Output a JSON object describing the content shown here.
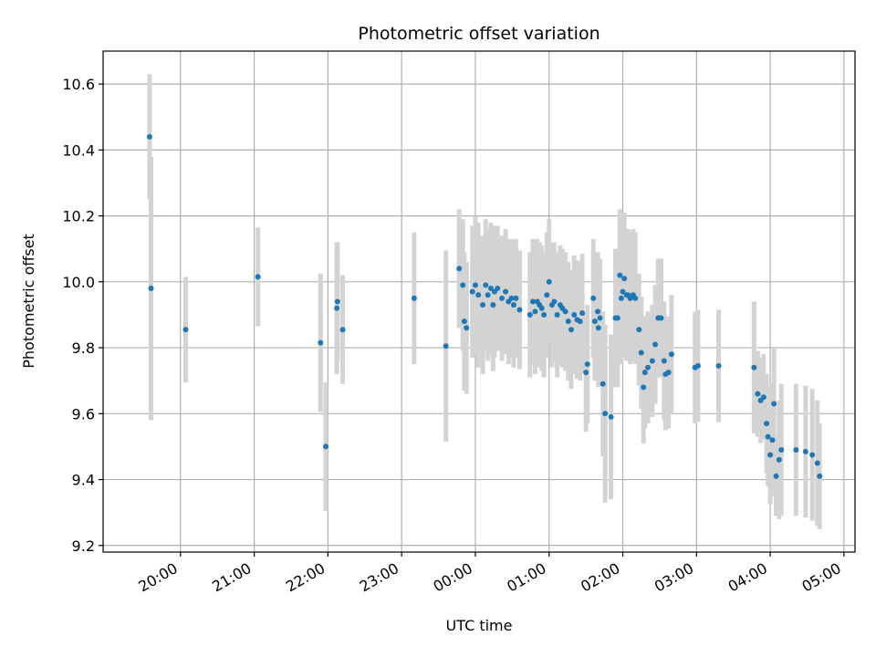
{
  "chart_data": {
    "type": "scatter",
    "title": "Photometric offset variation",
    "xlabel": "UTC time",
    "ylabel": "Photometric offset",
    "x_unit": "hours (UTC, continuing past midnight)",
    "xlim": [
      18.95,
      29.15
    ],
    "ylim": [
      9.18,
      10.7
    ],
    "xticks": [
      20,
      21,
      22,
      23,
      24,
      25,
      26,
      27,
      28,
      29
    ],
    "xtick_labels": [
      "20:00",
      "21:00",
      "22:00",
      "23:00",
      "00:00",
      "01:00",
      "02:00",
      "03:00",
      "04:00",
      "05:00"
    ],
    "yticks": [
      9.2,
      9.4,
      9.6,
      9.8,
      10.0,
      10.2,
      10.4,
      10.6
    ],
    "ytick_labels": [
      "9.2",
      "9.4",
      "9.6",
      "9.8",
      "10.0",
      "10.2",
      "10.4",
      "10.6"
    ],
    "grid": true,
    "colors": {
      "point": "#1f77b4",
      "errorbar": "#d3d3d3",
      "grid": "#b0b0b0"
    },
    "points": [
      [
        19.58,
        10.44,
        0.19
      ],
      [
        19.6,
        9.98,
        0.4
      ],
      [
        20.07,
        9.855,
        0.16
      ],
      [
        21.05,
        10.015,
        0.15
      ],
      [
        21.9,
        9.815,
        0.21
      ],
      [
        21.97,
        9.5,
        0.195
      ],
      [
        22.12,
        9.92,
        0.2
      ],
      [
        22.13,
        9.94,
        0.18
      ],
      [
        22.2,
        9.855,
        0.165
      ],
      [
        23.17,
        9.95,
        0.2
      ],
      [
        23.6,
        9.805,
        0.29
      ],
      [
        23.78,
        10.04,
        0.18
      ],
      [
        23.83,
        9.99,
        0.2
      ],
      [
        23.85,
        9.88,
        0.21
      ],
      [
        23.88,
        9.86,
        0.2
      ],
      [
        23.96,
        9.97,
        0.2
      ],
      [
        24.0,
        9.99,
        0.21
      ],
      [
        24.04,
        9.96,
        0.22
      ],
      [
        24.1,
        9.93,
        0.21
      ],
      [
        24.14,
        9.99,
        0.2
      ],
      [
        24.17,
        9.96,
        0.2
      ],
      [
        24.21,
        9.98,
        0.2
      ],
      [
        24.24,
        9.93,
        0.2
      ],
      [
        24.26,
        9.97,
        0.2
      ],
      [
        24.3,
        9.98,
        0.19
      ],
      [
        24.36,
        9.95,
        0.19
      ],
      [
        24.41,
        9.97,
        0.19
      ],
      [
        24.45,
        9.94,
        0.19
      ],
      [
        24.49,
        9.95,
        0.18
      ],
      [
        24.52,
        9.93,
        0.19
      ],
      [
        24.55,
        9.95,
        0.18
      ],
      [
        24.6,
        9.915,
        0.18
      ],
      [
        24.74,
        9.9,
        0.19
      ],
      [
        24.78,
        9.94,
        0.19
      ],
      [
        24.81,
        9.91,
        0.19
      ],
      [
        24.84,
        9.94,
        0.19
      ],
      [
        24.87,
        9.93,
        0.19
      ],
      [
        24.9,
        9.92,
        0.19
      ],
      [
        24.93,
        9.9,
        0.19
      ],
      [
        24.97,
        9.96,
        0.19
      ],
      [
        25.0,
        10.0,
        0.19
      ],
      [
        25.04,
        9.93,
        0.19
      ],
      [
        25.07,
        9.94,
        0.18
      ],
      [
        25.11,
        9.9,
        0.19
      ],
      [
        25.15,
        9.93,
        0.18
      ],
      [
        25.18,
        9.92,
        0.18
      ],
      [
        25.22,
        9.91,
        0.18
      ],
      [
        25.26,
        9.88,
        0.18
      ],
      [
        25.3,
        9.855,
        0.18
      ],
      [
        25.34,
        9.9,
        0.18
      ],
      [
        25.38,
        9.885,
        0.18
      ],
      [
        25.42,
        9.88,
        0.18
      ],
      [
        25.45,
        9.905,
        0.18
      ],
      [
        25.5,
        9.725,
        0.18
      ],
      [
        25.52,
        9.75,
        0.18
      ],
      [
        25.6,
        9.95,
        0.18
      ],
      [
        25.62,
        9.88,
        0.18
      ],
      [
        25.66,
        9.91,
        0.18
      ],
      [
        25.67,
        9.86,
        0.18
      ],
      [
        25.69,
        9.89,
        0.18
      ],
      [
        25.73,
        9.69,
        0.22
      ],
      [
        25.76,
        9.6,
        0.27
      ],
      [
        25.84,
        9.59,
        0.25
      ],
      [
        25.9,
        9.89,
        0.21
      ],
      [
        25.93,
        9.89,
        0.21
      ],
      [
        25.96,
        10.02,
        0.2
      ],
      [
        25.98,
        9.95,
        0.2
      ],
      [
        26.0,
        9.97,
        0.2
      ],
      [
        26.02,
        10.01,
        0.2
      ],
      [
        26.05,
        9.96,
        0.2
      ],
      [
        26.07,
        9.96,
        0.2
      ],
      [
        26.1,
        9.95,
        0.2
      ],
      [
        26.14,
        9.96,
        0.2
      ],
      [
        26.17,
        9.95,
        0.2
      ],
      [
        26.22,
        9.855,
        0.17
      ],
      [
        26.25,
        9.785,
        0.17
      ],
      [
        26.28,
        9.68,
        0.17
      ],
      [
        26.3,
        9.725,
        0.17
      ],
      [
        26.34,
        9.74,
        0.17
      ],
      [
        26.4,
        9.76,
        0.17
      ],
      [
        26.44,
        9.81,
        0.18
      ],
      [
        26.48,
        9.89,
        0.18
      ],
      [
        26.52,
        9.89,
        0.18
      ],
      [
        26.56,
        9.76,
        0.18
      ],
      [
        26.58,
        9.72,
        0.17
      ],
      [
        26.62,
        9.725,
        0.17
      ],
      [
        26.66,
        9.78,
        0.18
      ],
      [
        26.98,
        9.74,
        0.17
      ],
      [
        27.02,
        9.745,
        0.17
      ],
      [
        27.3,
        9.745,
        0.17
      ],
      [
        27.78,
        9.74,
        0.2
      ],
      [
        27.83,
        9.66,
        0.13
      ],
      [
        27.87,
        9.64,
        0.13
      ],
      [
        27.91,
        9.65,
        0.13
      ],
      [
        27.95,
        9.57,
        0.15
      ],
      [
        27.97,
        9.53,
        0.15
      ],
      [
        28.0,
        9.475,
        0.15
      ],
      [
        28.03,
        9.52,
        0.17
      ],
      [
        28.05,
        9.63,
        0.17
      ],
      [
        28.08,
        9.41,
        0.12
      ],
      [
        28.12,
        9.46,
        0.18
      ],
      [
        28.15,
        9.49,
        0.2
      ],
      [
        28.35,
        9.49,
        0.2
      ],
      [
        28.48,
        9.485,
        0.2
      ],
      [
        28.57,
        9.475,
        0.2
      ],
      [
        28.64,
        9.45,
        0.19
      ],
      [
        28.67,
        9.41,
        0.16
      ]
    ]
  }
}
